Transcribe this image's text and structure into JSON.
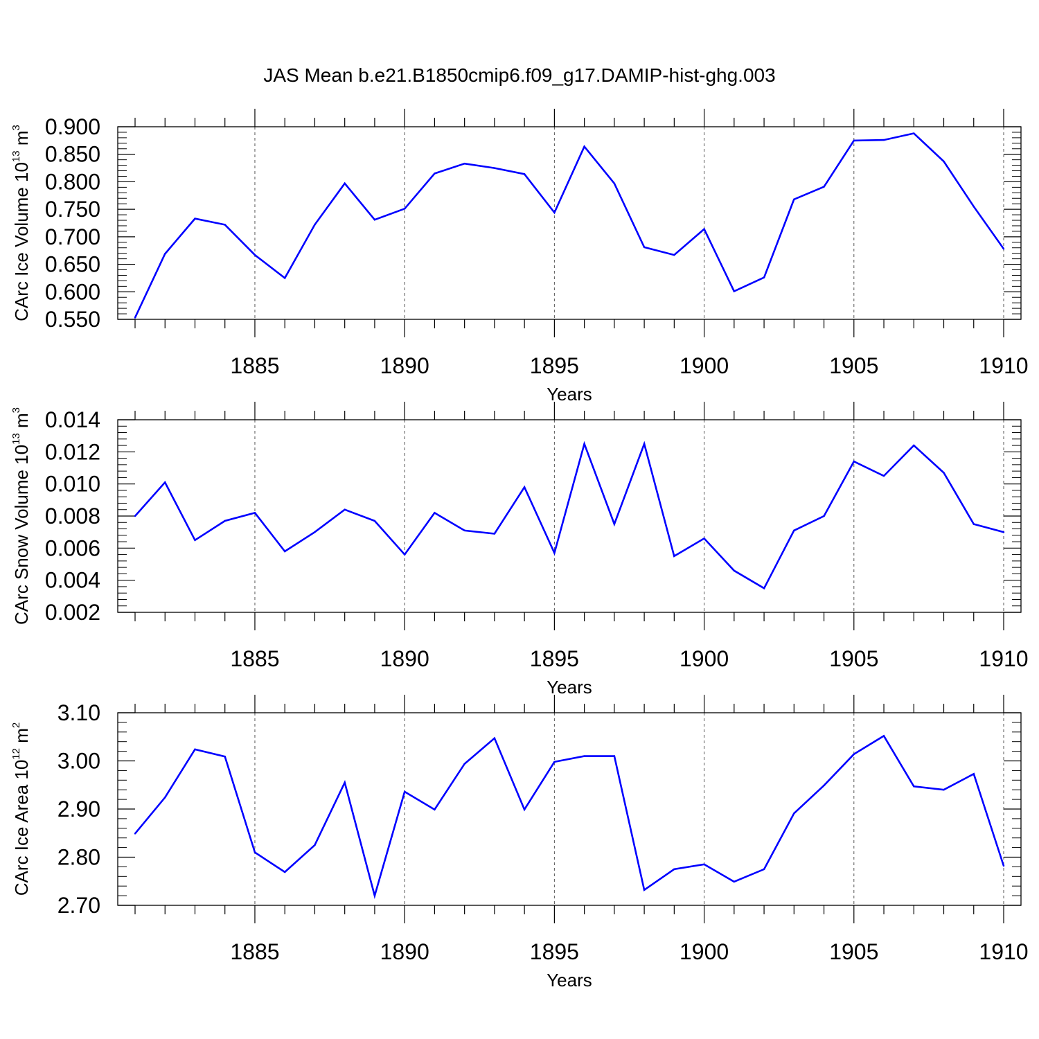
{
  "title": "JAS Mean b.e21.B1850cmip6.f09_g17.DAMIP-hist-ghg.003",
  "chart_data": [
    {
      "type": "line",
      "title": "",
      "xlabel": "Years",
      "ylabel": {
        "text": "CArc Ice Volume 10",
        "exp": "13",
        "unit": " m",
        "unit_exp": "3"
      },
      "xlim": [
        1881,
        1910
      ],
      "ylim": [
        0.55,
        0.9
      ],
      "x_ticks": [
        1885,
        1890,
        1895,
        1900,
        1905,
        1910
      ],
      "y_ticks": [
        "0.550",
        "0.600",
        "0.650",
        "0.700",
        "0.750",
        "0.800",
        "0.850",
        "0.900"
      ],
      "y_tick_values": [
        0.55,
        0.6,
        0.65,
        0.7,
        0.75,
        0.8,
        0.85,
        0.9
      ],
      "grid": "vertical dashed at major x ticks",
      "color": "#0000ff",
      "x": [
        1881,
        1882,
        1883,
        1884,
        1885,
        1886,
        1887,
        1888,
        1889,
        1890,
        1891,
        1892,
        1893,
        1894,
        1895,
        1896,
        1897,
        1898,
        1899,
        1900,
        1901,
        1902,
        1903,
        1904,
        1905,
        1906,
        1907,
        1908,
        1909,
        1910
      ],
      "values": [
        0.553,
        0.669,
        0.733,
        0.722,
        0.667,
        0.625,
        0.722,
        0.797,
        0.731,
        0.751,
        0.815,
        0.833,
        0.825,
        0.814,
        0.744,
        0.864,
        0.797,
        0.681,
        0.667,
        0.714,
        0.601,
        0.626,
        0.768,
        0.791,
        0.875,
        0.876,
        0.888,
        0.837,
        0.755,
        0.678
      ]
    },
    {
      "type": "line",
      "title": "",
      "xlabel": "Years",
      "ylabel": {
        "text": "CArc Snow Volume 10",
        "exp": "13",
        "unit": " m",
        "unit_exp": "3"
      },
      "xlim": [
        1881,
        1910
      ],
      "ylim": [
        0.002,
        0.014
      ],
      "x_ticks": [
        1885,
        1890,
        1895,
        1900,
        1905,
        1910
      ],
      "y_ticks": [
        "0.002",
        "0.004",
        "0.006",
        "0.008",
        "0.010",
        "0.012",
        "0.014"
      ],
      "y_tick_values": [
        0.002,
        0.004,
        0.006,
        0.008,
        0.01,
        0.012,
        0.014
      ],
      "grid": "vertical dashed at major x ticks",
      "color": "#0000ff",
      "x": [
        1881,
        1882,
        1883,
        1884,
        1885,
        1886,
        1887,
        1888,
        1889,
        1890,
        1891,
        1892,
        1893,
        1894,
        1895,
        1896,
        1897,
        1898,
        1899,
        1900,
        1901,
        1902,
        1903,
        1904,
        1905,
        1906,
        1907,
        1908,
        1909,
        1910
      ],
      "values": [
        0.008,
        0.0101,
        0.0065,
        0.0077,
        0.0082,
        0.0058,
        0.007,
        0.0084,
        0.0077,
        0.0056,
        0.0082,
        0.0071,
        0.0069,
        0.0098,
        0.0057,
        0.0125,
        0.0075,
        0.0125,
        0.0055,
        0.0066,
        0.0046,
        0.0035,
        0.0071,
        0.008,
        0.0114,
        0.0105,
        0.0124,
        0.0107,
        0.0075,
        0.007
      ]
    },
    {
      "type": "line",
      "title": "",
      "xlabel": "Years",
      "ylabel": {
        "text": "CArc Ice Area 10",
        "exp": "12",
        "unit": " m",
        "unit_exp": "2"
      },
      "xlim": [
        1881,
        1910
      ],
      "ylim": [
        2.7,
        3.1
      ],
      "x_ticks": [
        1885,
        1890,
        1895,
        1900,
        1905,
        1910
      ],
      "y_ticks": [
        "2.70",
        "2.80",
        "2.90",
        "3.00",
        "3.10"
      ],
      "y_tick_values": [
        2.7,
        2.8,
        2.9,
        3.0,
        3.1
      ],
      "grid": "vertical dashed at major x ticks",
      "color": "#0000ff",
      "x": [
        1881,
        1882,
        1883,
        1884,
        1885,
        1886,
        1887,
        1888,
        1889,
        1890,
        1891,
        1892,
        1893,
        1894,
        1895,
        1896,
        1897,
        1898,
        1899,
        1900,
        1901,
        1902,
        1903,
        1904,
        1905,
        1906,
        1907,
        1908,
        1909,
        1910
      ],
      "values": [
        2.849,
        2.924,
        3.024,
        3.009,
        2.81,
        2.769,
        2.825,
        2.955,
        2.72,
        2.936,
        2.899,
        2.994,
        3.047,
        2.899,
        2.998,
        3.01,
        3.01,
        2.732,
        2.775,
        2.785,
        2.749,
        2.775,
        2.891,
        2.949,
        3.014,
        3.052,
        2.947,
        2.94,
        2.973,
        2.782
      ]
    }
  ]
}
